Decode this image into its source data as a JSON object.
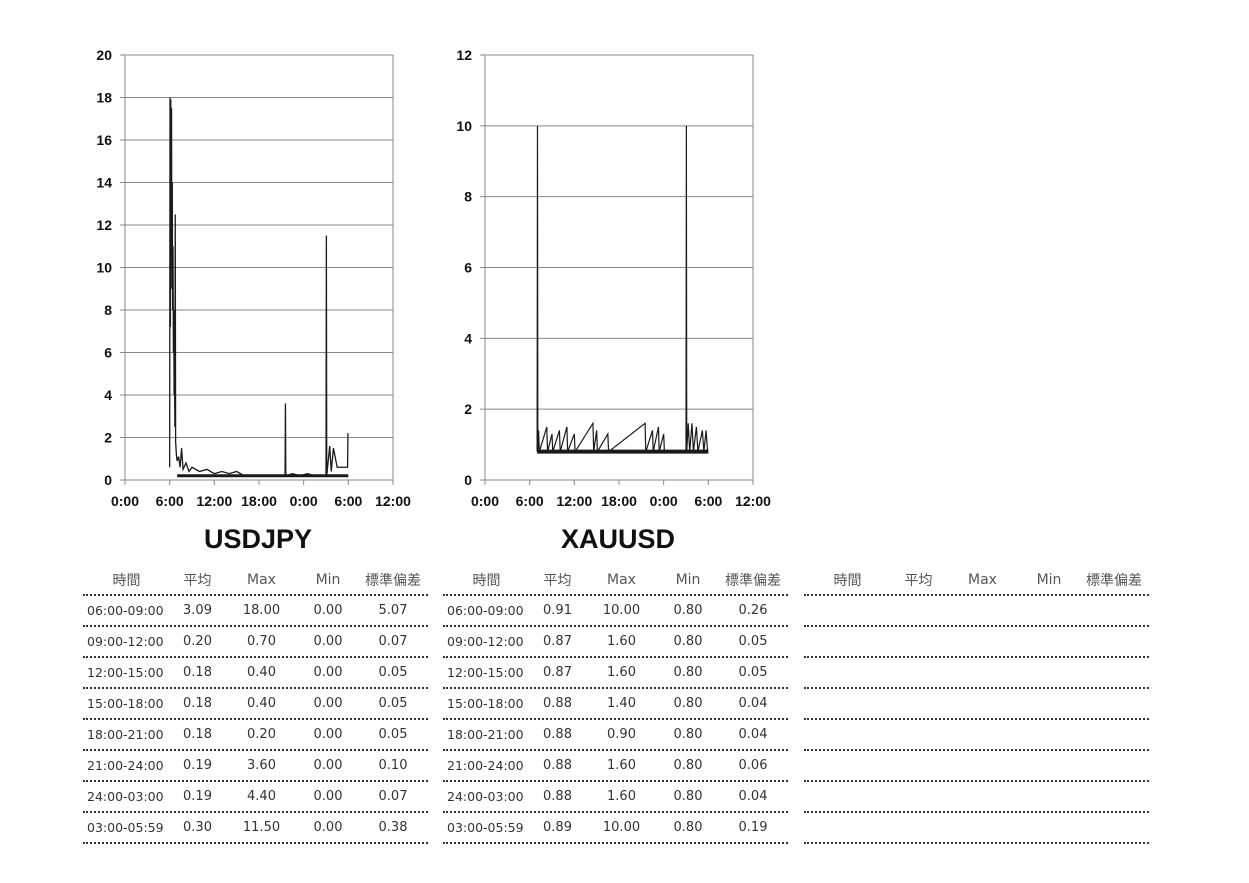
{
  "chart_data": [
    {
      "type": "line",
      "title": "USDJPY",
      "ylim": [
        0,
        20
      ],
      "yticks": [
        0,
        2,
        4,
        6,
        8,
        10,
        12,
        14,
        16,
        18,
        20
      ],
      "xlim": [
        0,
        36
      ],
      "xticks": [
        0,
        6,
        12,
        18,
        24,
        30,
        36
      ],
      "xtick_labels": [
        "0:00",
        "6:00",
        "12:00",
        "18:00",
        "0:00",
        "6:00",
        "12:00"
      ],
      "grid": true,
      "series": [
        {
          "values": [
            {
              "x": 6.0,
              "y": 0.6
            },
            {
              "x": 6.05,
              "y": 18.0
            },
            {
              "x": 6.1,
              "y": 7.2
            },
            {
              "x": 6.15,
              "y": 17.9
            },
            {
              "x": 6.2,
              "y": 12.0
            },
            {
              "x": 6.25,
              "y": 17.5
            },
            {
              "x": 6.3,
              "y": 9.0
            },
            {
              "x": 6.35,
              "y": 14.0
            },
            {
              "x": 6.4,
              "y": 8.0
            },
            {
              "x": 6.45,
              "y": 11.0
            },
            {
              "x": 6.5,
              "y": 6.0
            },
            {
              "x": 6.55,
              "y": 8.0
            },
            {
              "x": 6.6,
              "y": 4.0
            },
            {
              "x": 6.65,
              "y": 5.0
            },
            {
              "x": 6.7,
              "y": 2.5
            },
            {
              "x": 6.75,
              "y": 12.5
            },
            {
              "x": 6.8,
              "y": 1.8
            },
            {
              "x": 6.9,
              "y": 1.2
            },
            {
              "x": 7.0,
              "y": 0.9
            },
            {
              "x": 7.2,
              "y": 1.1
            },
            {
              "x": 7.4,
              "y": 0.6
            },
            {
              "x": 7.6,
              "y": 1.5
            },
            {
              "x": 7.8,
              "y": 0.5
            },
            {
              "x": 8.2,
              "y": 0.8
            },
            {
              "x": 8.6,
              "y": 0.4
            },
            {
              "x": 9.0,
              "y": 0.6
            },
            {
              "x": 10.0,
              "y": 0.4
            },
            {
              "x": 11.0,
              "y": 0.5
            },
            {
              "x": 12.0,
              "y": 0.3
            },
            {
              "x": 13.0,
              "y": 0.4
            },
            {
              "x": 14.0,
              "y": 0.3
            },
            {
              "x": 15.0,
              "y": 0.4
            },
            {
              "x": 16.0,
              "y": 0.2
            },
            {
              "x": 17.0,
              "y": 0.2
            },
            {
              "x": 18.0,
              "y": 0.2
            },
            {
              "x": 19.0,
              "y": 0.2
            },
            {
              "x": 20.0,
              "y": 0.2
            },
            {
              "x": 21.5,
              "y": 0.2
            },
            {
              "x": 21.55,
              "y": 3.6
            },
            {
              "x": 21.6,
              "y": 0.2
            },
            {
              "x": 22.5,
              "y": 0.3
            },
            {
              "x": 23.5,
              "y": 0.2
            },
            {
              "x": 24.5,
              "y": 0.3
            },
            {
              "x": 25.5,
              "y": 0.2
            },
            {
              "x": 27.0,
              "y": 0.2
            },
            {
              "x": 27.05,
              "y": 11.5
            },
            {
              "x": 27.1,
              "y": 0.2
            },
            {
              "x": 27.5,
              "y": 1.6
            },
            {
              "x": 27.7,
              "y": 0.4
            },
            {
              "x": 28.0,
              "y": 1.5
            },
            {
              "x": 28.5,
              "y": 0.6
            },
            {
              "x": 29.0,
              "y": 0.6
            },
            {
              "x": 29.9,
              "y": 0.6
            },
            {
              "x": 29.95,
              "y": 2.2
            }
          ]
        }
      ]
    },
    {
      "type": "line",
      "title": "XAUUSD",
      "ylim": [
        0,
        12
      ],
      "yticks": [
        0,
        2,
        4,
        6,
        8,
        10,
        12
      ],
      "xlim": [
        0,
        36
      ],
      "xticks": [
        0,
        6,
        12,
        18,
        24,
        30,
        36
      ],
      "xtick_labels": [
        "0:00",
        "6:00",
        "12:00",
        "18:00",
        "0:00",
        "6:00",
        "12:00"
      ],
      "grid": true,
      "series": [
        {
          "values": [
            {
              "x": 7.0,
              "y": 0.8
            },
            {
              "x": 7.05,
              "y": 10.0
            },
            {
              "x": 7.1,
              "y": 0.8
            },
            {
              "x": 7.2,
              "y": 1.4
            },
            {
              "x": 7.3,
              "y": 0.8
            },
            {
              "x": 8.3,
              "y": 1.5
            },
            {
              "x": 8.4,
              "y": 0.8
            },
            {
              "x": 9.0,
              "y": 1.3
            },
            {
              "x": 9.1,
              "y": 0.8
            },
            {
              "x": 10.0,
              "y": 1.4
            },
            {
              "x": 10.1,
              "y": 0.8
            },
            {
              "x": 11.0,
              "y": 1.5
            },
            {
              "x": 11.1,
              "y": 0.8
            },
            {
              "x": 12.0,
              "y": 1.3
            },
            {
              "x": 12.1,
              "y": 0.8
            },
            {
              "x": 14.5,
              "y": 1.6
            },
            {
              "x": 14.6,
              "y": 0.8
            },
            {
              "x": 15.0,
              "y": 1.4
            },
            {
              "x": 15.1,
              "y": 0.8
            },
            {
              "x": 16.5,
              "y": 1.3
            },
            {
              "x": 16.6,
              "y": 0.8
            },
            {
              "x": 21.5,
              "y": 1.6
            },
            {
              "x": 21.6,
              "y": 0.8
            },
            {
              "x": 22.5,
              "y": 1.4
            },
            {
              "x": 22.6,
              "y": 0.8
            },
            {
              "x": 23.3,
              "y": 1.5
            },
            {
              "x": 23.4,
              "y": 0.8
            },
            {
              "x": 24.0,
              "y": 1.3
            },
            {
              "x": 24.1,
              "y": 0.8
            },
            {
              "x": 27.0,
              "y": 0.8
            },
            {
              "x": 27.05,
              "y": 10.0
            },
            {
              "x": 27.1,
              "y": 0.8
            },
            {
              "x": 27.3,
              "y": 1.6
            },
            {
              "x": 27.5,
              "y": 0.8
            },
            {
              "x": 27.8,
              "y": 1.6
            },
            {
              "x": 28.0,
              "y": 0.8
            },
            {
              "x": 28.4,
              "y": 1.5
            },
            {
              "x": 28.6,
              "y": 0.8
            },
            {
              "x": 29.2,
              "y": 1.4
            },
            {
              "x": 29.4,
              "y": 0.8
            },
            {
              "x": 29.7,
              "y": 1.4
            },
            {
              "x": 29.9,
              "y": 0.8
            },
            {
              "x": 30.0,
              "y": 0.8
            }
          ]
        }
      ]
    }
  ],
  "tables": [
    {
      "headers": [
        "時間",
        "平均",
        "Max",
        "Min",
        "標準偏差"
      ],
      "rows": [
        [
          "06:00-09:00",
          "3.09",
          "18.00",
          "0.00",
          "5.07"
        ],
        [
          "09:00-12:00",
          "0.20",
          "0.70",
          "0.00",
          "0.07"
        ],
        [
          "12:00-15:00",
          "0.18",
          "0.40",
          "0.00",
          "0.05"
        ],
        [
          "15:00-18:00",
          "0.18",
          "0.40",
          "0.00",
          "0.05"
        ],
        [
          "18:00-21:00",
          "0.18",
          "0.20",
          "0.00",
          "0.05"
        ],
        [
          "21:00-24:00",
          "0.19",
          "3.60",
          "0.00",
          "0.10"
        ],
        [
          "24:00-03:00",
          "0.19",
          "4.40",
          "0.00",
          "0.07"
        ],
        [
          "03:00-05:59",
          "0.30",
          "11.50",
          "0.00",
          "0.38"
        ]
      ]
    },
    {
      "headers": [
        "時間",
        "平均",
        "Max",
        "Min",
        "標準偏差"
      ],
      "rows": [
        [
          "06:00-09:00",
          "0.91",
          "10.00",
          "0.80",
          "0.26"
        ],
        [
          "09:00-12:00",
          "0.87",
          "1.60",
          "0.80",
          "0.05"
        ],
        [
          "12:00-15:00",
          "0.87",
          "1.60",
          "0.80",
          "0.05"
        ],
        [
          "15:00-18:00",
          "0.88",
          "1.40",
          "0.80",
          "0.04"
        ],
        [
          "18:00-21:00",
          "0.88",
          "0.90",
          "0.80",
          "0.04"
        ],
        [
          "21:00-24:00",
          "0.88",
          "1.60",
          "0.80",
          "0.06"
        ],
        [
          "24:00-03:00",
          "0.88",
          "1.60",
          "0.80",
          "0.04"
        ],
        [
          "03:00-05:59",
          "0.89",
          "10.00",
          "0.80",
          "0.19"
        ]
      ]
    },
    {
      "headers": [
        "時間",
        "平均",
        "Max",
        "Min",
        "標準偏差"
      ],
      "rows": [
        [
          "",
          "",
          "",
          "",
          ""
        ],
        [
          "",
          "",
          "",
          "",
          ""
        ],
        [
          "",
          "",
          "",
          "",
          ""
        ],
        [
          "",
          "",
          "",
          "",
          ""
        ],
        [
          "",
          "",
          "",
          "",
          ""
        ],
        [
          "",
          "",
          "",
          "",
          ""
        ],
        [
          "",
          "",
          "",
          "",
          ""
        ],
        [
          "",
          "",
          "",
          "",
          ""
        ]
      ]
    }
  ],
  "colors": {
    "line": "#1a1a1a",
    "grid": "#888888",
    "axis": "#888888"
  }
}
